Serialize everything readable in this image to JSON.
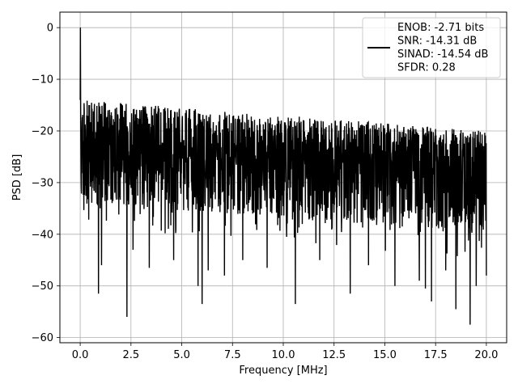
{
  "chart_data": {
    "type": "line",
    "title": "",
    "xlabel": "Frequency [MHz]",
    "ylabel": "PSD [dB]",
    "xlim": [
      -1.0,
      21.0
    ],
    "ylim": [
      -61.0,
      3.0
    ],
    "xticks": [
      0.0,
      2.5,
      5.0,
      7.5,
      10.0,
      12.5,
      15.0,
      17.5,
      20.0
    ],
    "xtick_labels": [
      "0.0",
      "2.5",
      "5.0",
      "7.5",
      "10.0",
      "12.5",
      "15.0",
      "17.5",
      "20.0"
    ],
    "yticks": [
      0,
      -10,
      -20,
      -30,
      -40,
      -50,
      -60
    ],
    "ytick_labels": [
      "0",
      "−10",
      "−20",
      "−30",
      "−40",
      "−50",
      "−60"
    ],
    "grid": true,
    "legend_position": "top-right",
    "legend_lines": [
      "ENOB: -2.71 bits",
      "SNR: -14.31 dB",
      "SINAD: -14.54 dB",
      "SFDR: 0.28"
    ],
    "series": [
      {
        "color": "#000000",
        "x_range": [
          0.0,
          20.0
        ],
        "peak": {
          "x": 0.05,
          "y": 0.0
        },
        "noise_band": {
          "upper_start": -14,
          "upper_end": -20,
          "floor_mean_start": -23,
          "floor_mean_end": -27,
          "lower_start": -34,
          "lower_end": -40
        },
        "deep_dips": [
          {
            "x": 0.9,
            "y": -51.5
          },
          {
            "x": 1.05,
            "y": -46.0
          },
          {
            "x": 2.3,
            "y": -56.0
          },
          {
            "x": 2.6,
            "y": -43.0
          },
          {
            "x": 3.4,
            "y": -46.5
          },
          {
            "x": 4.6,
            "y": -45.0
          },
          {
            "x": 5.8,
            "y": -50.0
          },
          {
            "x": 6.0,
            "y": -53.5
          },
          {
            "x": 6.3,
            "y": -47.0
          },
          {
            "x": 7.1,
            "y": -48.0
          },
          {
            "x": 8.0,
            "y": -45.0
          },
          {
            "x": 9.2,
            "y": -46.5
          },
          {
            "x": 10.6,
            "y": -53.5
          },
          {
            "x": 11.8,
            "y": -45.0
          },
          {
            "x": 13.3,
            "y": -51.5
          },
          {
            "x": 14.2,
            "y": -46.0
          },
          {
            "x": 15.5,
            "y": -50.0
          },
          {
            "x": 16.7,
            "y": -49.0
          },
          {
            "x": 17.0,
            "y": -50.5
          },
          {
            "x": 17.3,
            "y": -53.0
          },
          {
            "x": 18.0,
            "y": -47.0
          },
          {
            "x": 18.5,
            "y": -54.5
          },
          {
            "x": 19.2,
            "y": -57.5
          },
          {
            "x": 19.5,
            "y": -50.0
          },
          {
            "x": 20.0,
            "y": -48.0
          }
        ]
      }
    ]
  }
}
